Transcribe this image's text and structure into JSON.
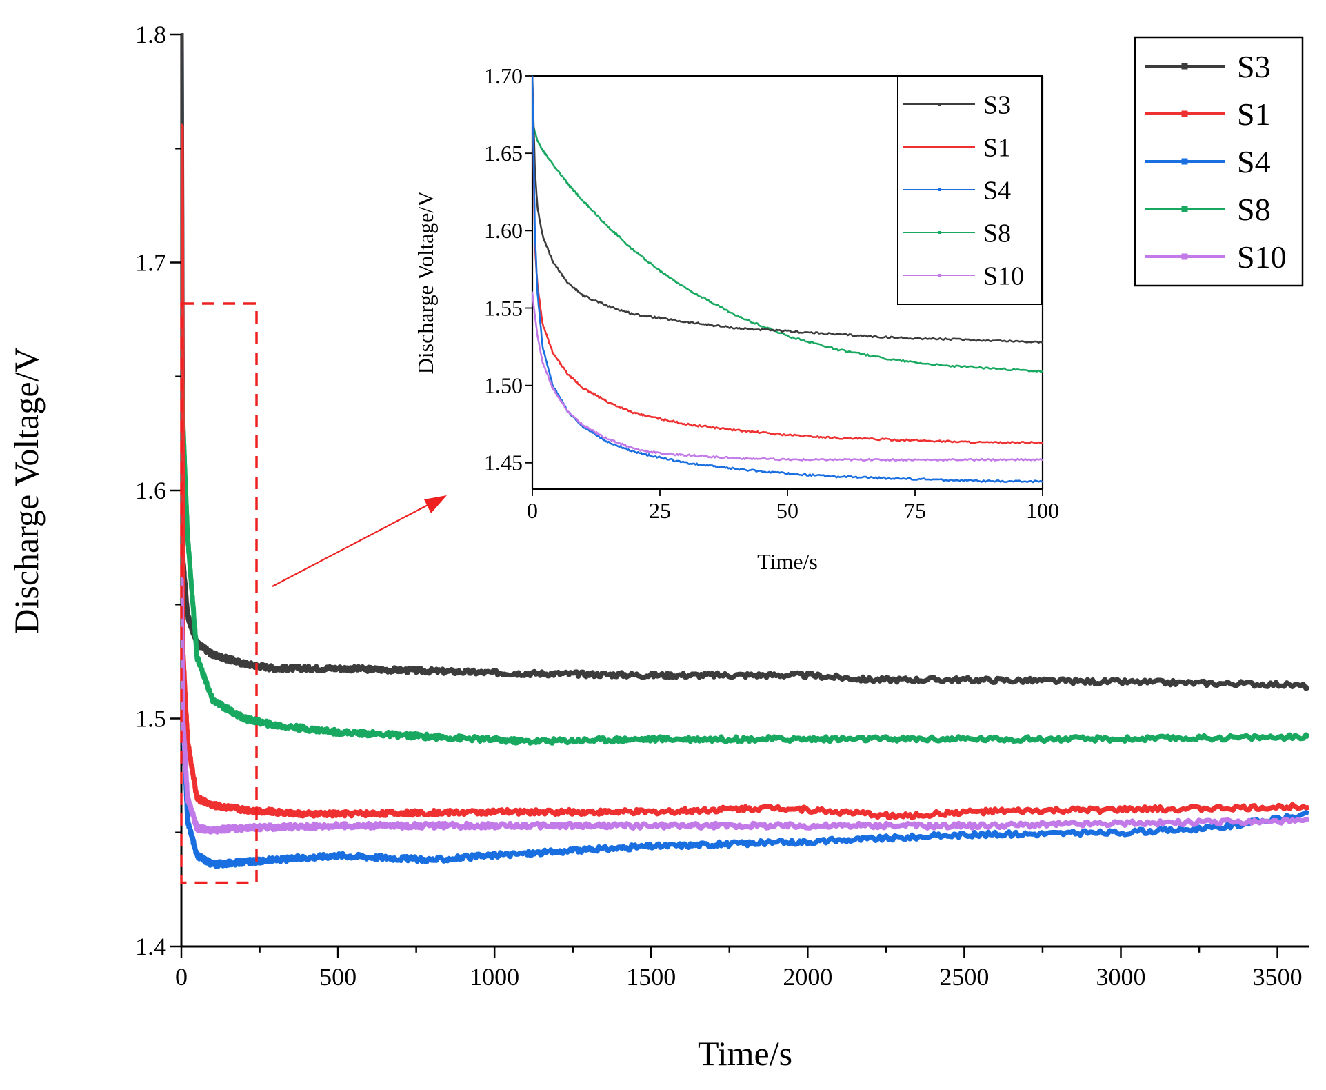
{
  "colors": {
    "S3": "#3c3c3c",
    "S1": "#ee3030",
    "S4": "#1a6fe0",
    "S8": "#18a860",
    "S10": "#c27ae8",
    "highlight": "#ee2020"
  },
  "chart_data": [
    {
      "id": "main",
      "type": "line",
      "xlabel": "Time/s",
      "ylabel": "Discharge Voltage/V",
      "xlim": [
        0,
        3600
      ],
      "ylim": [
        1.4,
        1.8
      ],
      "xticks": [
        0,
        500,
        1000,
        1500,
        2000,
        2500,
        3000,
        3500
      ],
      "xtick_labels": [
        "0",
        "500",
        "1000",
        "1500",
        "2000",
        "2500",
        "3000",
        "3500"
      ],
      "yticks": [
        1.4,
        1.5,
        1.6,
        1.7,
        1.8
      ],
      "ytick_labels": [
        "1.4",
        "1.5",
        "1.6",
        "1.7",
        "1.8"
      ],
      "legend": "top-right",
      "highlight_region": {
        "x": [
          0,
          240
        ],
        "y": [
          1.428,
          1.682
        ]
      },
      "series": [
        {
          "name": "S3",
          "x": [
            0,
            5,
            20,
            50,
            100,
            200,
            300,
            500,
            1000,
            1500,
            2000,
            2200,
            2500,
            3000,
            3500,
            3600
          ],
          "y": [
            1.8,
            1.57,
            1.545,
            1.533,
            1.528,
            1.524,
            1.522,
            1.522,
            1.52,
            1.519,
            1.519,
            1.517,
            1.517,
            1.516,
            1.515,
            1.514
          ]
        },
        {
          "name": "S1",
          "x": [
            0,
            5,
            20,
            50,
            100,
            200,
            400,
            1000,
            1500,
            1900,
            2300,
            2500,
            3000,
            3500,
            3600
          ],
          "y": [
            1.76,
            1.53,
            1.49,
            1.465,
            1.462,
            1.46,
            1.458,
            1.459,
            1.459,
            1.461,
            1.457,
            1.459,
            1.46,
            1.461,
            1.462
          ]
        },
        {
          "name": "S4",
          "x": [
            0,
            5,
            20,
            50,
            100,
            200,
            500,
            800,
            1000,
            1500,
            2000,
            2500,
            3000,
            3300,
            3600
          ],
          "y": [
            1.8,
            1.5,
            1.455,
            1.44,
            1.436,
            1.437,
            1.44,
            1.438,
            1.44,
            1.444,
            1.446,
            1.449,
            1.45,
            1.452,
            1.458
          ]
        },
        {
          "name": "S8",
          "x": [
            0,
            5,
            20,
            50,
            100,
            200,
            300,
            500,
            800,
            1100,
            1500,
            2000,
            2500,
            3000,
            3600
          ],
          "y": [
            1.67,
            1.63,
            1.58,
            1.527,
            1.508,
            1.5,
            1.497,
            1.494,
            1.492,
            1.49,
            1.491,
            1.491,
            1.491,
            1.491,
            1.492
          ]
        },
        {
          "name": "S10",
          "x": [
            0,
            5,
            20,
            50,
            100,
            200,
            500,
            1000,
            1500,
            2000,
            2500,
            3000,
            3600
          ],
          "y": [
            1.56,
            1.5,
            1.465,
            1.452,
            1.451,
            1.452,
            1.453,
            1.453,
            1.453,
            1.453,
            1.453,
            1.454,
            1.455
          ]
        }
      ]
    },
    {
      "id": "inset",
      "type": "line",
      "xlabel": "Time/s",
      "ylabel": "Discharge Voltage/V",
      "xlim": [
        0,
        100
      ],
      "ylim": [
        1.433,
        1.7
      ],
      "xticks": [
        0,
        25,
        50,
        75,
        100
      ],
      "xtick_labels": [
        "0",
        "25",
        "50",
        "75",
        "100"
      ],
      "yticks": [
        1.45,
        1.5,
        1.55,
        1.6,
        1.65,
        1.7
      ],
      "ytick_labels": [
        "1.45",
        "1.50",
        "1.55",
        "1.60",
        "1.65",
        "1.70"
      ],
      "legend": "top-right",
      "series": [
        {
          "name": "S3",
          "x": [
            0,
            0.5,
            1,
            2,
            4,
            7,
            10,
            15,
            20,
            30,
            40,
            50,
            60,
            70,
            80,
            90,
            100
          ],
          "y": [
            1.7,
            1.64,
            1.615,
            1.597,
            1.58,
            1.566,
            1.558,
            1.551,
            1.546,
            1.541,
            1.537,
            1.535,
            1.533,
            1.531,
            1.53,
            1.529,
            1.528
          ]
        },
        {
          "name": "S1",
          "x": [
            0,
            0.5,
            1,
            2,
            4,
            7,
            10,
            15,
            20,
            30,
            40,
            50,
            60,
            70,
            80,
            90,
            100
          ],
          "y": [
            1.7,
            1.59,
            1.565,
            1.54,
            1.521,
            1.507,
            1.498,
            1.489,
            1.482,
            1.475,
            1.471,
            1.468,
            1.466,
            1.465,
            1.464,
            1.463,
            1.463
          ]
        },
        {
          "name": "S4",
          "x": [
            0,
            0.5,
            1,
            2,
            4,
            7,
            10,
            15,
            20,
            30,
            40,
            50,
            60,
            70,
            80,
            90,
            100
          ],
          "y": [
            1.7,
            1.6,
            1.56,
            1.525,
            1.5,
            1.483,
            1.473,
            1.463,
            1.457,
            1.45,
            1.446,
            1.443,
            1.441,
            1.44,
            1.439,
            1.438,
            1.438
          ]
        },
        {
          "name": "S8",
          "x": [
            0,
            0.5,
            1,
            2,
            4,
            7,
            10,
            15,
            20,
            25,
            30,
            40,
            50,
            60,
            70,
            80,
            90,
            100
          ],
          "y": [
            1.67,
            1.664,
            1.658,
            1.652,
            1.643,
            1.63,
            1.619,
            1.602,
            1.587,
            1.574,
            1.563,
            1.545,
            1.532,
            1.523,
            1.517,
            1.513,
            1.511,
            1.509
          ]
        },
        {
          "name": "S10",
          "x": [
            0,
            0.5,
            1,
            2,
            4,
            7,
            10,
            15,
            20,
            25,
            30,
            40,
            50,
            60,
            70,
            80,
            90,
            100
          ],
          "y": [
            1.56,
            1.545,
            1.532,
            1.515,
            1.498,
            1.483,
            1.474,
            1.465,
            1.459,
            1.456,
            1.455,
            1.453,
            1.452,
            1.452,
            1.452,
            1.452,
            1.452,
            1.452
          ]
        }
      ]
    }
  ]
}
